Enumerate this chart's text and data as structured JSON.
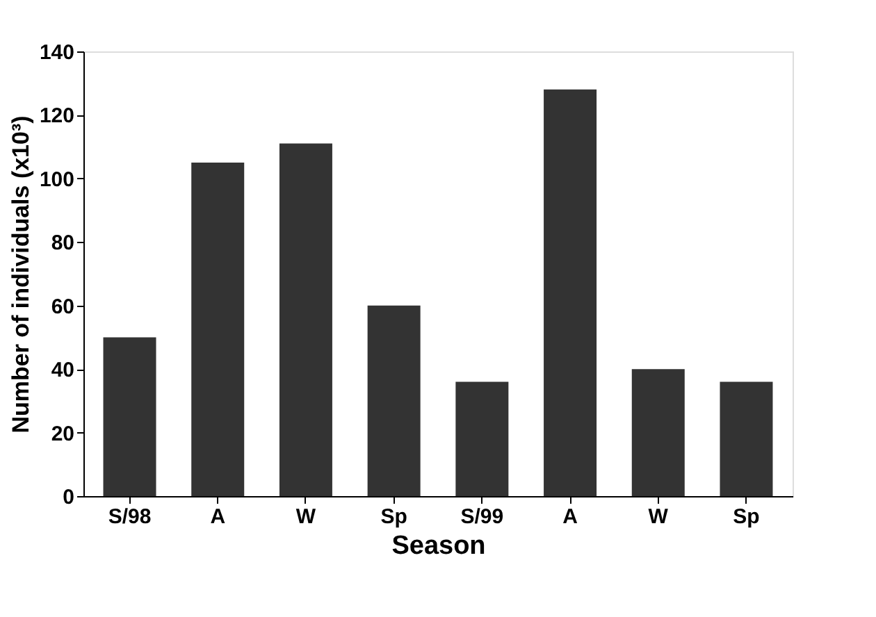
{
  "chart_data": {
    "type": "bar",
    "xlabel": "Season",
    "ylabel": "Number of individuals (x10³)",
    "categories": [
      "S/98",
      "A",
      "W",
      "Sp",
      "S/99",
      "A",
      "W",
      "Sp"
    ],
    "values": [
      50,
      105,
      111,
      60,
      36,
      128,
      40,
      36
    ],
    "color": "#333333",
    "ylim": [
      0,
      140
    ],
    "yticks": [
      0,
      20,
      40,
      60,
      80,
      100,
      120,
      140
    ],
    "grid": false
  }
}
